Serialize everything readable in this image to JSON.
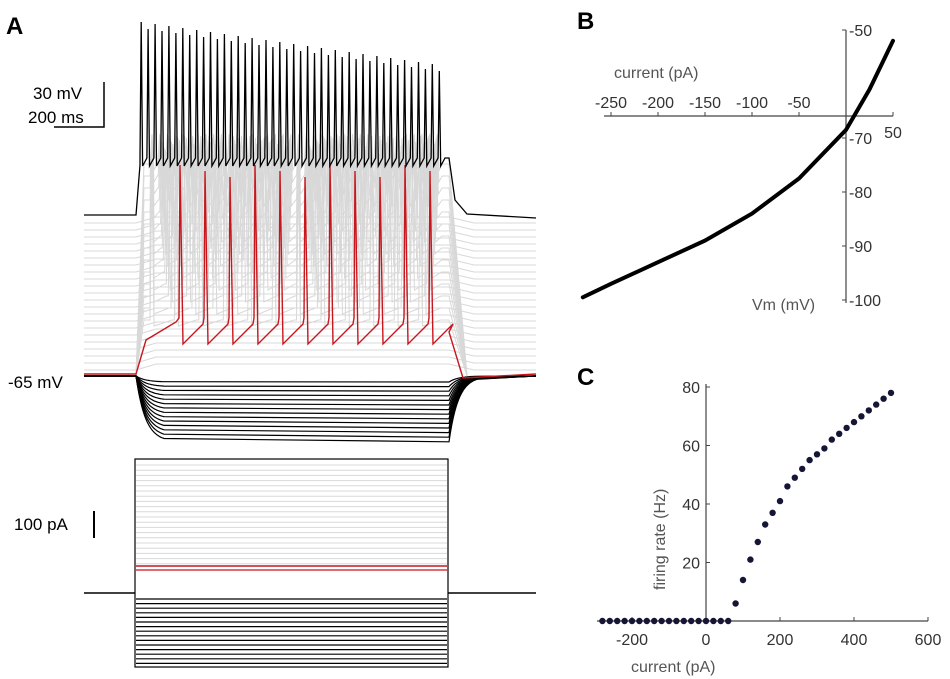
{
  "panels": {
    "a": "A",
    "b": "B",
    "c": "C"
  },
  "colors": {
    "black": "#000000",
    "gray": "#d8d8d8",
    "red": "#c8161d",
    "axis": "#444444",
    "dot": "#151535"
  },
  "chart_data": [
    {
      "panel": "A",
      "type": "line",
      "title": "",
      "scale_bars": {
        "voltage": "30 mV",
        "time": "200 ms",
        "current": "100 pA"
      },
      "resting_label": "-65 mV",
      "trace_counts": {
        "hyperpolarizing_black": 14,
        "subthreshold_gray": 22,
        "suprathreshold_gray": 14,
        "red_spikes": 11,
        "top_black_spikes": 44
      }
    },
    {
      "panel": "B",
      "type": "line",
      "title": "",
      "xlabel": "current (pA)",
      "ylabel": "Vm (mV)",
      "x_ticks": [
        -250,
        -200,
        -150,
        -100,
        -50,
        50
      ],
      "x_tick_labels": [
        "-250",
        "-200",
        "-150",
        "-100",
        "-50",
        "50"
      ],
      "y_ticks": [
        -50,
        -70,
        -80,
        -90,
        -100
      ],
      "y_tick_labels": [
        "-50",
        "-70",
        "-80",
        "-90",
        "-100"
      ],
      "xlim": [
        -280,
        50
      ],
      "ylim": [
        -100,
        -50
      ],
      "series": [
        {
          "x": [
            -280,
            -250,
            -200,
            -150,
            -100,
            -50,
            0,
            25,
            50
          ],
          "y": [
            -99.5,
            -97,
            -93,
            -89,
            -84,
            -77.5,
            -68.5,
            -61,
            -52
          ]
        }
      ]
    },
    {
      "panel": "C",
      "type": "scatter",
      "title": "",
      "xlabel": "current (pA)",
      "ylabel": "firing rate (Hz)",
      "x_ticks": [
        -200,
        0,
        200,
        400,
        600
      ],
      "x_tick_labels": [
        "-200",
        "0",
        "200",
        "400",
        "600"
      ],
      "y_ticks": [
        20,
        40,
        60,
        80
      ],
      "y_tick_labels": [
        "20",
        "40",
        "60",
        "80"
      ],
      "xlim": [
        -290,
        600
      ],
      "ylim": [
        0,
        80
      ],
      "series": [
        {
          "x": [
            -280,
            -260,
            -240,
            -220,
            -200,
            -180,
            -160,
            -140,
            -120,
            -100,
            -80,
            -60,
            -40,
            -20,
            0,
            20,
            40,
            60,
            80,
            100,
            120,
            140,
            160,
            180,
            200,
            220,
            240,
            260,
            280,
            300,
            320,
            340,
            360,
            380,
            400,
            420,
            440,
            460,
            480,
            500
          ],
          "y": [
            0,
            0,
            0,
            0,
            0,
            0,
            0,
            0,
            0,
            0,
            0,
            0,
            0,
            0,
            0,
            0,
            0,
            0,
            6,
            14,
            21,
            27,
            33,
            37,
            41,
            46,
            49,
            52,
            55,
            57,
            59,
            62,
            64,
            66,
            68,
            70,
            72,
            74,
            76,
            78
          ]
        }
      ]
    }
  ]
}
